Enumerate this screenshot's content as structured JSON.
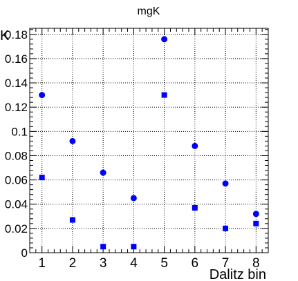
{
  "chart_data": {
    "type": "scatter",
    "title": "mgK",
    "xlabel": "Dalitz bin",
    "ylabel": "K",
    "xlim": [
      0.6,
      8.4
    ],
    "ylim": [
      0,
      0.185
    ],
    "grid": true,
    "x_ticks": [
      "1",
      "2",
      "3",
      "4",
      "5",
      "6",
      "7",
      "8"
    ],
    "y_ticks": [
      "0",
      "0.02",
      "0.04",
      "0.06",
      "0.08",
      "0.1",
      "0.12",
      "0.14",
      "0.16",
      "0.18"
    ],
    "series": [
      {
        "marker": "circle",
        "color": "#0000ff",
        "x": [
          1,
          2,
          3,
          4,
          5,
          6,
          7,
          8
        ],
        "y": [
          0.13,
          0.092,
          0.066,
          0.045,
          0.176,
          0.088,
          0.057,
          0.032
        ]
      },
      {
        "marker": "square",
        "color": "#0000ff",
        "x": [
          1,
          2,
          3,
          4,
          5,
          6,
          7,
          8
        ],
        "y": [
          0.062,
          0.027,
          0.005,
          0.005,
          0.13,
          0.037,
          0.02,
          0.024
        ]
      }
    ]
  }
}
